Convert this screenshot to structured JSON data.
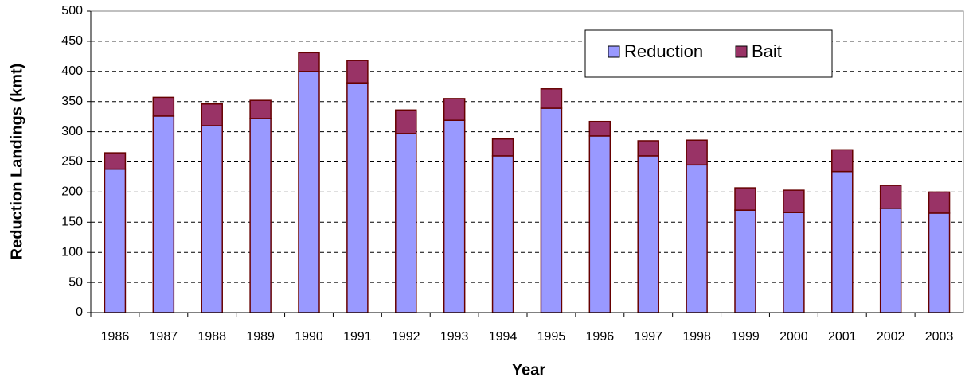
{
  "chart_data": {
    "type": "bar",
    "stacked": true,
    "x_label": "Year",
    "y_label": "Reduction Landings (kmt)",
    "categories": [
      "1986",
      "1987",
      "1988",
      "1989",
      "1990",
      "1991",
      "1992",
      "1993",
      "1994",
      "1995",
      "1996",
      "1997",
      "1998",
      "1999",
      "2000",
      "2001",
      "2002",
      "2003"
    ],
    "series": [
      {
        "name": "Reduction",
        "color": "#9999ff",
        "values": [
          238,
          326,
          310,
          322,
          400,
          381,
          297,
          319,
          260,
          339,
          293,
          260,
          245,
          170,
          166,
          234,
          173,
          165
        ]
      },
      {
        "name": "Bait",
        "color": "#993366",
        "values": [
          27,
          31,
          36,
          30,
          31,
          37,
          39,
          36,
          28,
          32,
          24,
          25,
          41,
          37,
          37,
          36,
          38,
          35
        ]
      }
    ],
    "ylim": [
      0,
      500
    ],
    "yticks": [
      0,
      50,
      100,
      150,
      200,
      250,
      300,
      350,
      400,
      450,
      500
    ],
    "grid": true
  }
}
